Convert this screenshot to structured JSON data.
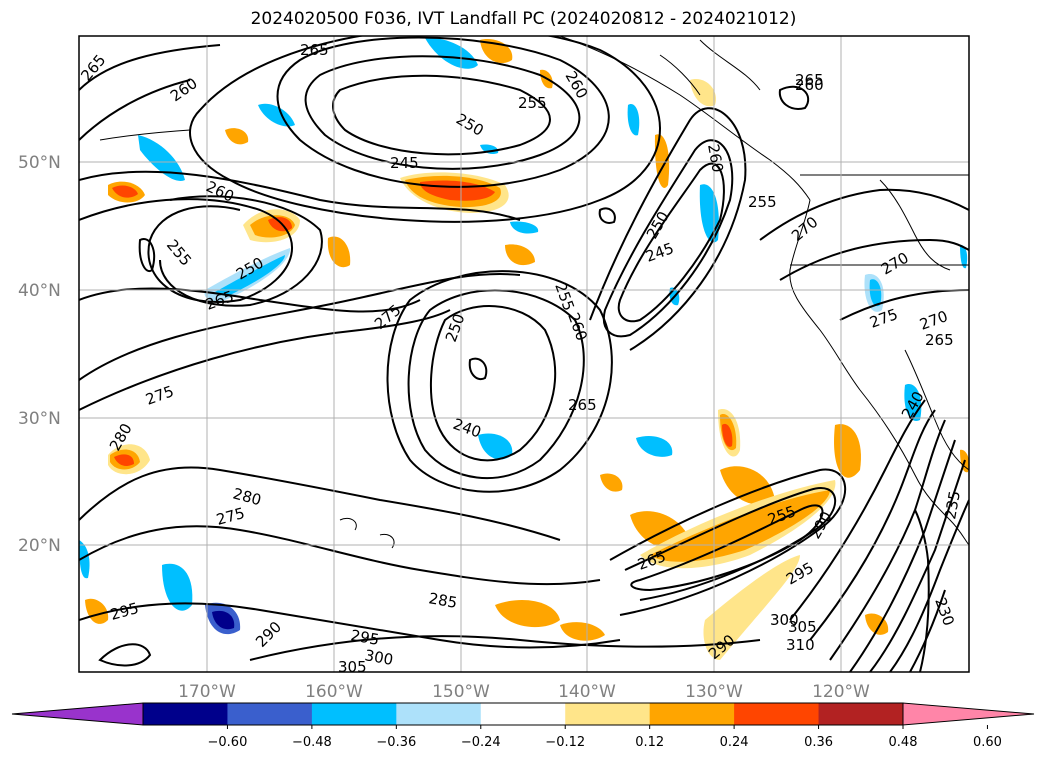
{
  "title": "2024020500 F036, IVT Landfall PC (2024020812 - 2024021012)",
  "map": {
    "lat_labels": [
      "50°N",
      "40°N",
      "30°N",
      "20°N"
    ],
    "lon_labels": [
      "170°W",
      "160°W",
      "150°W",
      "140°W",
      "130°W",
      "120°W"
    ],
    "contour_labels": [
      "265",
      "260",
      "265",
      "255",
      "260",
      "250",
      "245",
      "260",
      "265",
      "260",
      "255",
      "250",
      "265",
      "275",
      "280",
      "275",
      "280",
      "285",
      "290",
      "295",
      "295",
      "300",
      "305",
      "250",
      "255",
      "240",
      "260",
      "265",
      "275",
      "260",
      "250",
      "245",
      "255",
      "270",
      "270",
      "275",
      "270",
      "265",
      "240",
      "230",
      "235",
      "255",
      "290",
      "295",
      "300",
      "305",
      "310",
      "290",
      "265"
    ]
  },
  "colorbar": {
    "ticks": [
      "−0.60",
      "−0.48",
      "−0.36",
      "−0.24",
      "−0.12",
      "0.12",
      "0.24",
      "0.36",
      "0.48",
      "0.60"
    ],
    "colors": [
      "#9933CC",
      "#00008B",
      "#3A5FCD",
      "#00BFFF",
      "#ADE1FA",
      "#FFFFFF",
      "#FFE58A",
      "#FFA500",
      "#FF4500",
      "#B22222",
      "#FF85A8"
    ]
  }
}
